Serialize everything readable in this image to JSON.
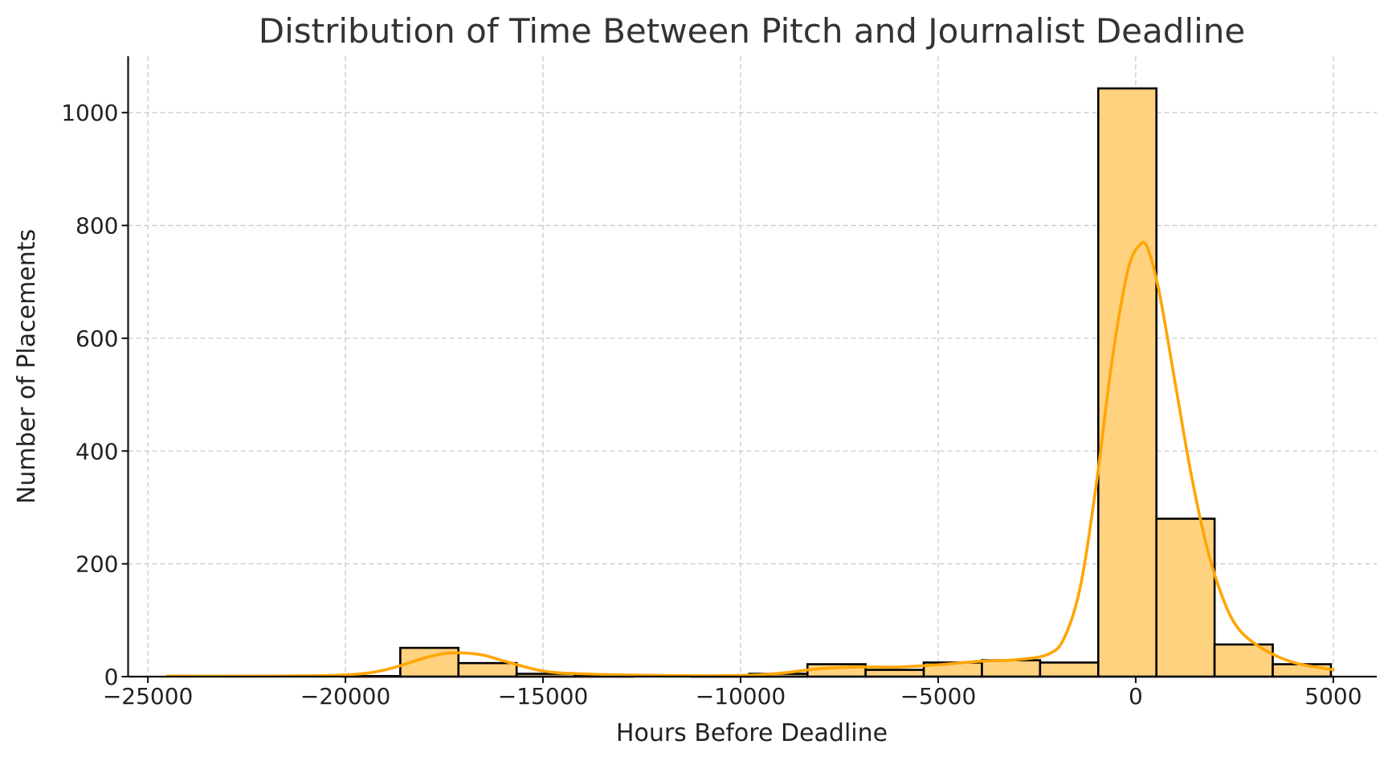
{
  "chart_data": {
    "type": "bar",
    "subtype": "histogram",
    "title": "Distribution of Time Between Pitch and Journalist Deadline",
    "xlabel": "Hours Before Deadline",
    "ylabel": "Number of Placements",
    "xlim": [
      -25500,
      6100
    ],
    "ylim": [
      0,
      1100
    ],
    "xticks": [
      -25000,
      -20000,
      -15000,
      -10000,
      -5000,
      0,
      5000
    ],
    "xtick_labels": [
      "−25000",
      "−20000",
      "−15000",
      "−10000",
      "−5000",
      "0",
      "5000"
    ],
    "yticks": [
      0,
      200,
      400,
      600,
      800,
      1000
    ],
    "ytick_labels": [
      "0",
      "200",
      "400",
      "600",
      "800",
      "1000"
    ],
    "grid": true,
    "bins": [
      {
        "x0": -24500,
        "x1": -23028,
        "count": 0
      },
      {
        "x0": -23028,
        "x1": -21556,
        "count": 0
      },
      {
        "x0": -21556,
        "x1": -20084,
        "count": 0
      },
      {
        "x0": -20084,
        "x1": -18612,
        "count": 1
      },
      {
        "x0": -18612,
        "x1": -17140,
        "count": 51
      },
      {
        "x0": -17140,
        "x1": -15668,
        "count": 24
      },
      {
        "x0": -15668,
        "x1": -14196,
        "count": 5
      },
      {
        "x0": -14196,
        "x1": -12724,
        "count": 1
      },
      {
        "x0": -12724,
        "x1": -11252,
        "count": 0
      },
      {
        "x0": -11252,
        "x1": -9780,
        "count": 1
      },
      {
        "x0": -9780,
        "x1": -8308,
        "count": 5
      },
      {
        "x0": -8308,
        "x1": -6836,
        "count": 22
      },
      {
        "x0": -6836,
        "x1": -5364,
        "count": 12
      },
      {
        "x0": -5364,
        "x1": -3892,
        "count": 25
      },
      {
        "x0": -3892,
        "x1": -2420,
        "count": 29
      },
      {
        "x0": -2420,
        "x1": -948,
        "count": 25
      },
      {
        "x0": -948,
        "x1": 524,
        "count": 1043
      },
      {
        "x0": 524,
        "x1": 1996,
        "count": 280
      },
      {
        "x0": 1996,
        "x1": 3468,
        "count": 57
      },
      {
        "x0": 3468,
        "x1": 4940,
        "count": 22
      }
    ],
    "kde": {
      "color": "#ffa500",
      "x": [
        -24500,
        -22000,
        -20000,
        -19000,
        -18000,
        -17500,
        -17000,
        -16500,
        -16000,
        -15000,
        -14000,
        -12000,
        -10000,
        -9000,
        -8000,
        -7000,
        -6000,
        -5000,
        -4000,
        -3000,
        -2200,
        -1800,
        -1400,
        -1000,
        -600,
        -200,
        100,
        300,
        600,
        1000,
        1400,
        1800,
        2200,
        2600,
        3200,
        4000,
        5000
      ],
      "y": [
        1,
        1,
        3,
        12,
        33,
        41,
        42,
        38,
        28,
        10,
        5,
        2,
        2,
        6,
        14,
        17,
        17,
        21,
        27,
        30,
        40,
        70,
        160,
        340,
        560,
        720,
        765,
        760,
        680,
        520,
        360,
        230,
        140,
        85,
        50,
        25,
        12
      ]
    },
    "colors": {
      "bar_fill": "#ffd27f",
      "bar_edge": "#000000",
      "kde_line": "#ffa500"
    }
  }
}
